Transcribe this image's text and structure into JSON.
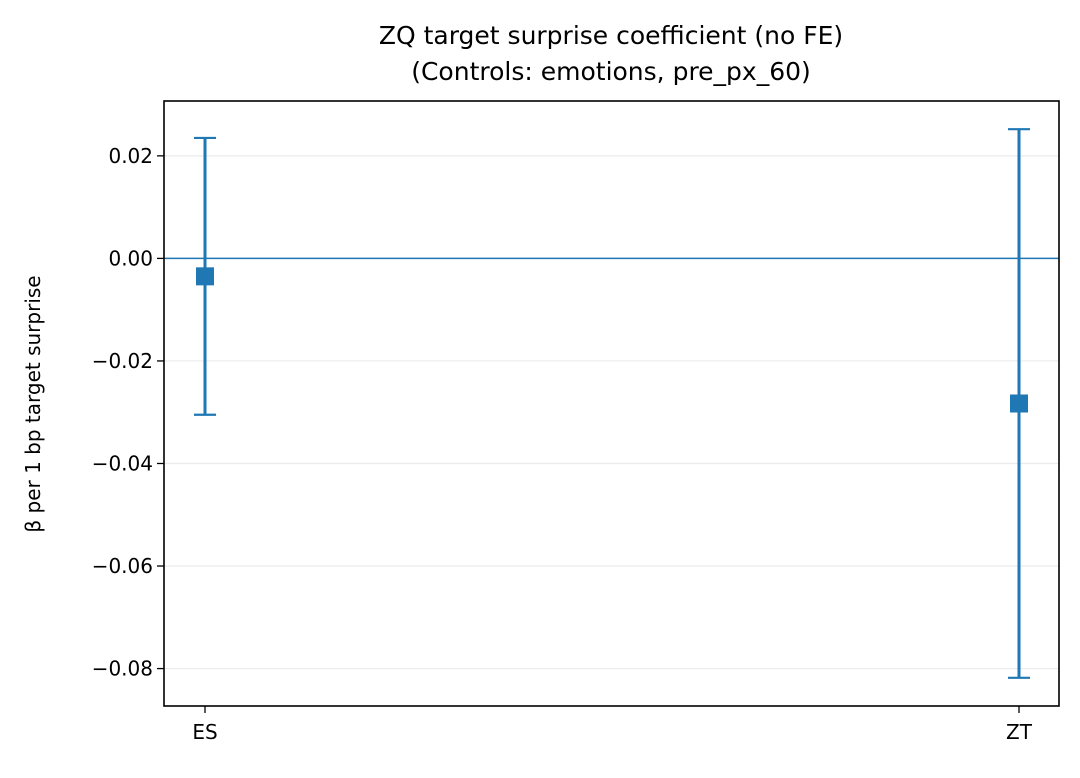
{
  "chart_data": {
    "type": "scatter",
    "title": "ZQ target surprise coefficient (no FE)",
    "subtitle": "(Controls: emotions, pre_px_60)",
    "xlabel": "",
    "ylabel": "β per 1 bp target surprise",
    "categories": [
      "ES",
      "ZT"
    ],
    "series": [
      {
        "values": [
          -0.0035,
          -0.0283
        ],
        "error_low": [
          -0.0305,
          -0.0818
        ],
        "error_high": [
          0.0235,
          0.0252
        ],
        "marker": "square",
        "color": "#1f77b4"
      }
    ],
    "reference_line": {
      "y": 0.0,
      "color": "#1f77b4"
    },
    "ylim": [
      -0.0873,
      0.0307
    ],
    "yticks": [
      0.02,
      0.0,
      -0.02,
      -0.04,
      -0.06,
      -0.08
    ],
    "ytick_labels": [
      "0.02",
      "0.00",
      "−0.02",
      "−0.04",
      "−0.06",
      "−0.08"
    ],
    "grid": "horizontal",
    "legend": "none"
  }
}
